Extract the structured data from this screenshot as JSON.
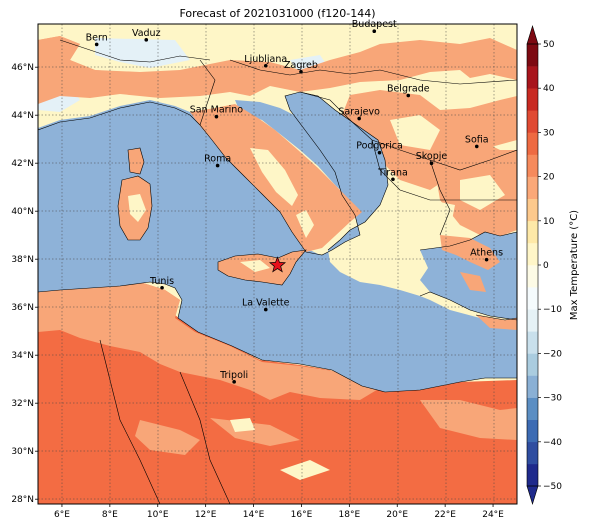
{
  "title": "Forecast of 2021031000 (f120-144)",
  "map": {
    "lon_range": [
      5,
      25
    ],
    "lat_range": [
      27.8,
      47.8
    ],
    "xticks": [
      "6°E",
      "8°E",
      "10°E",
      "12°E",
      "14°E",
      "16°E",
      "18°E",
      "20°E",
      "22°E",
      "24°E"
    ],
    "yticks": [
      "28°N",
      "30°N",
      "32°N",
      "34°N",
      "36°N",
      "38°N",
      "40°N",
      "42°N",
      "44°N",
      "46°N"
    ],
    "gridlines": true,
    "marker": {
      "name": "star",
      "lon": 15.0,
      "lat": 37.75,
      "color": "#e8101a"
    }
  },
  "cities": [
    {
      "name": "Bern",
      "lon": 7.45,
      "lat": 46.95
    },
    {
      "name": "Vaduz",
      "lon": 9.52,
      "lat": 47.14
    },
    {
      "name": "Budapest",
      "lon": 19.04,
      "lat": 47.5
    },
    {
      "name": "Ljubljana",
      "lon": 14.51,
      "lat": 46.06
    },
    {
      "name": "Zagreb",
      "lon": 15.98,
      "lat": 45.81
    },
    {
      "name": "Belgrade",
      "lon": 20.46,
      "lat": 44.82
    },
    {
      "name": "San Marino",
      "lon": 12.45,
      "lat": 43.94
    },
    {
      "name": "Sarajevo",
      "lon": 18.41,
      "lat": 43.86
    },
    {
      "name": "Sofia",
      "lon": 23.32,
      "lat": 42.7
    },
    {
      "name": "Roma",
      "lon": 12.5,
      "lat": 41.9
    },
    {
      "name": "Podgorica",
      "lon": 19.26,
      "lat": 42.44
    },
    {
      "name": "Skopje",
      "lon": 21.43,
      "lat": 42.0
    },
    {
      "name": "Tirana",
      "lon": 19.82,
      "lat": 41.33
    },
    {
      "name": "Athens",
      "lon": 23.73,
      "lat": 37.98
    },
    {
      "name": "Tunis",
      "lon": 10.18,
      "lat": 36.81
    },
    {
      "name": "La Valette",
      "lon": 14.51,
      "lat": 35.9
    },
    {
      "name": "Tripoli",
      "lon": 13.19,
      "lat": 32.89
    }
  ],
  "colorbar": {
    "label": "Max Temperature (°C)",
    "ticks": [
      "50",
      "40",
      "30",
      "20",
      "10",
      "0",
      "−10",
      "−20",
      "−30",
      "−40",
      "−50"
    ],
    "levels": [
      -50,
      -45,
      -40,
      -35,
      -30,
      -25,
      -20,
      -15,
      -10,
      -5,
      0,
      5,
      10,
      15,
      20,
      25,
      30,
      35,
      40,
      45,
      50
    ],
    "colors": [
      "#1f2a8c",
      "#2f4da0",
      "#3c6bb3",
      "#5b8ec3",
      "#8ab0d5",
      "#aaccdf",
      "#c9e0ec",
      "#e6f2f6",
      "#f5fbfd",
      "#fdfbe6",
      "#fff6c8",
      "#fee9a8",
      "#fdc98c",
      "#fba878",
      "#f68a5c",
      "#ee6a42",
      "#e04a33",
      "#c82a22",
      "#a8151c",
      "#7d0a12"
    ]
  },
  "field_colors": {
    "sea": "#8eb2d8",
    "africa_hot": "#f36c43",
    "warm": "#f8a678",
    "mild": "#fef6c7",
    "cool": "#e4f1f7"
  }
}
